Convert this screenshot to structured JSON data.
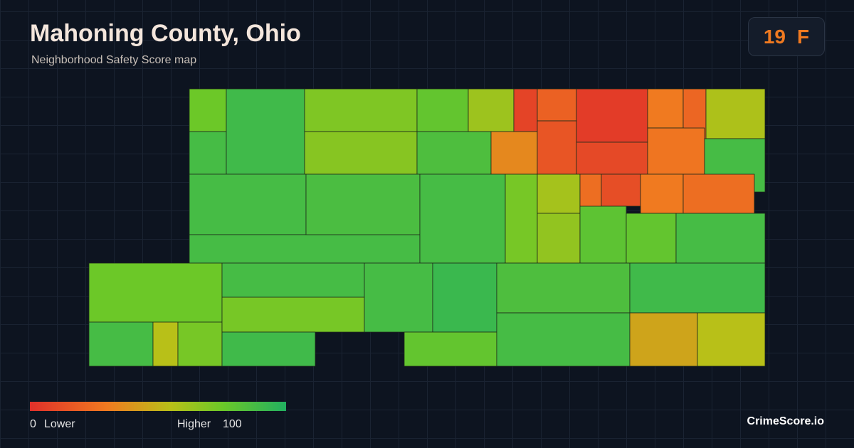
{
  "header": {
    "title": "Mahoning County, Ohio",
    "subtitle": "Neighborhood Safety Score map"
  },
  "score_badge": {
    "score": 19,
    "grade": "F"
  },
  "legend": {
    "min": 0,
    "min_label": "Lower",
    "max_label": "Higher",
    "max": 100
  },
  "regions": [
    75,
    88,
    90,
    70,
    68,
    78,
    62,
    8,
    20,
    5,
    30,
    22,
    58,
    85,
    35,
    15,
    10,
    28,
    88,
    88,
    88,
    86,
    88,
    72,
    60,
    25,
    12,
    30,
    25,
    65,
    80,
    78,
    88,
    75,
    88,
    55,
    72,
    88,
    72,
    90,
    88,
    92,
    78,
    85,
    88,
    90,
    45,
    55
  ],
  "brand": "CrimeScore.io"
}
